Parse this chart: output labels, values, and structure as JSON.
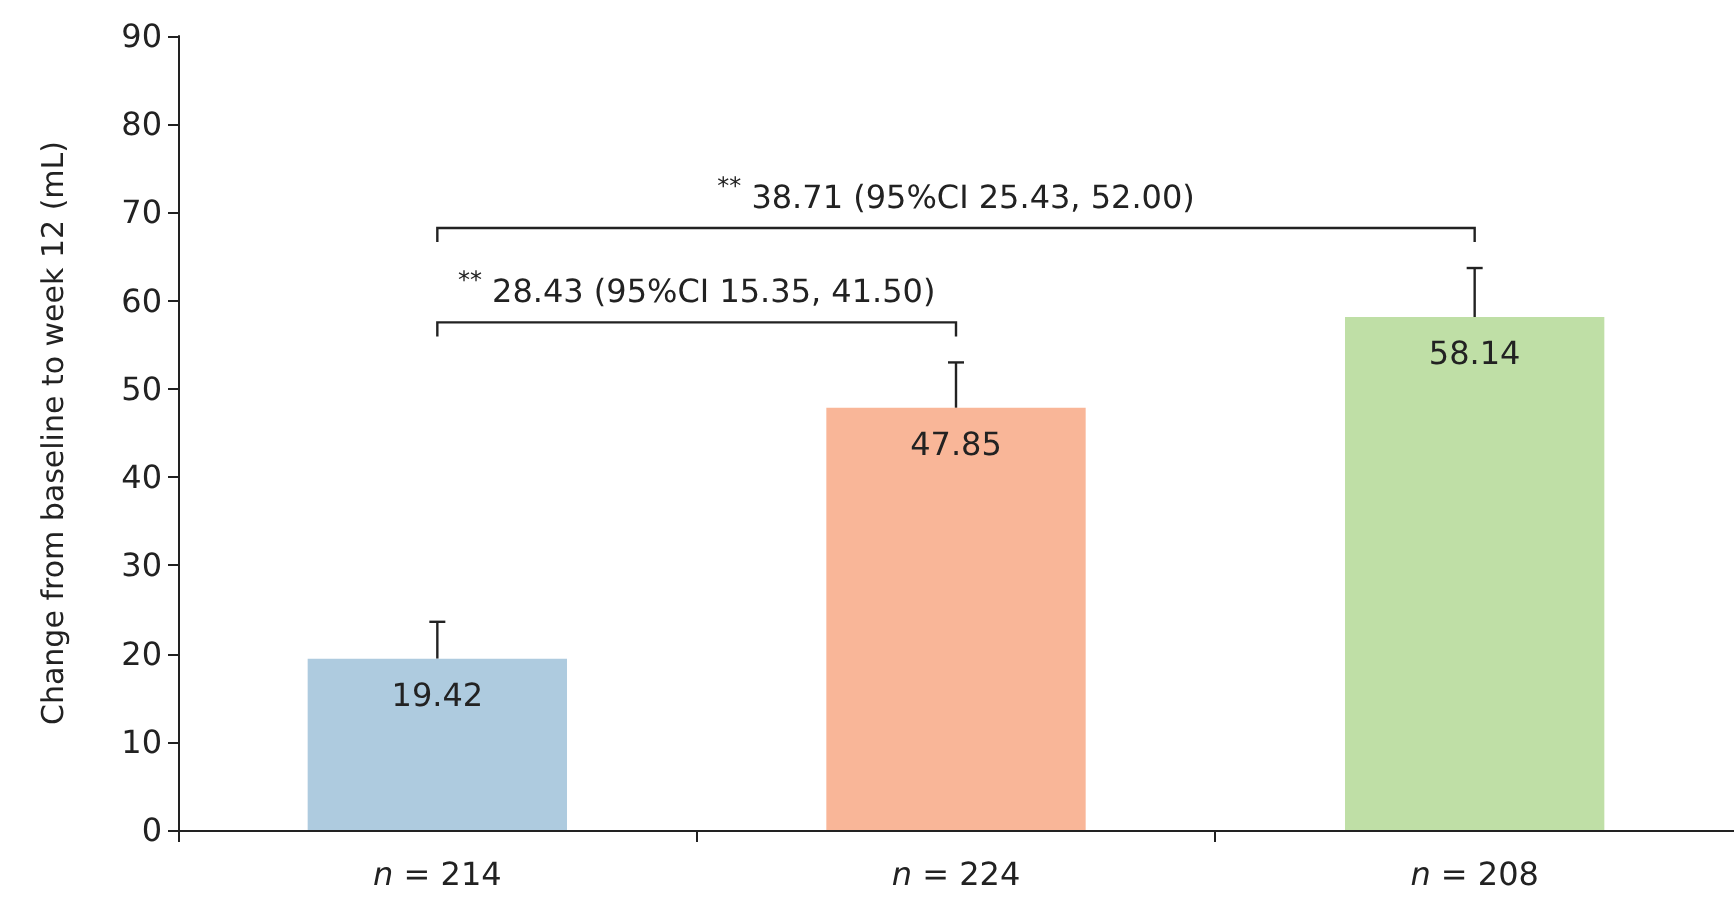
{
  "chart_data": {
    "type": "bar",
    "ylabel": "Change from baseline to week 12 (mL)",
    "categories": [
      "n = 214",
      "n = 224",
      "n = 208"
    ],
    "values": [
      19.42,
      47.85,
      58.14
    ],
    "colors": [
      "#aecbdf",
      "#f9b698",
      "#bfdfa6"
    ],
    "errors": [
      [
        19.42,
        23.6
      ],
      [
        47.85,
        53.0
      ],
      [
        58.14,
        63.7
      ]
    ],
    "data_labels": true,
    "ylim": [
      0,
      90
    ],
    "yticks": [
      0,
      10,
      20,
      30,
      40,
      50,
      60,
      70,
      80,
      90
    ],
    "grid": false,
    "annotations": [
      "$^{**}$ 38.71 (95%CI 25.43, 52.00)",
      "$^{**}$ 28.43 (95%CI 15.35, 41.50)"
    ]
  }
}
